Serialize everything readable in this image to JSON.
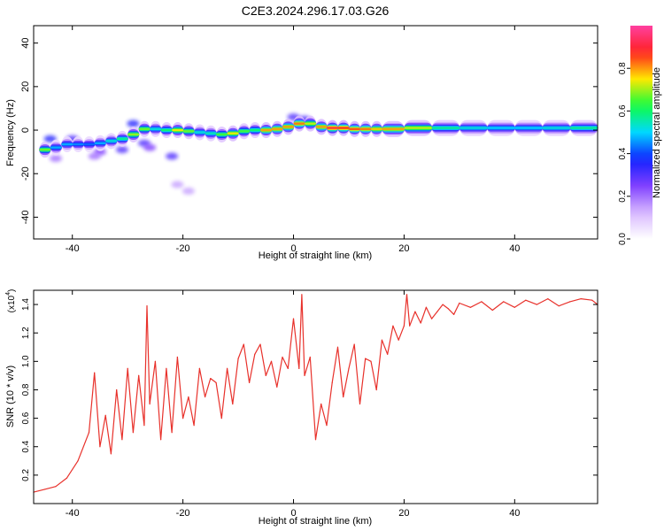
{
  "title": "C2E3.2024.296.17.03.G26",
  "colors": {
    "snr_line": "#e8312b",
    "axis": "#000000",
    "background": "#ffffff",
    "colormap": [
      "#ffffff",
      "#d8b8ff",
      "#8040ff",
      "#1020ff",
      "#00d8ff",
      "#10ff40",
      "#ffe800",
      "#ff2020",
      "#ff40a0"
    ]
  },
  "chart_data": [
    {
      "type": "heatmap",
      "title": "C2E3.2024.296.17.03.G26",
      "xlabel": "Height of straight line (km)",
      "ylabel": "Frequency (Hz)",
      "xlim": [
        -47,
        55
      ],
      "ylim": [
        -50,
        48
      ],
      "xticks": [
        "-40",
        "-20",
        "0",
        "20",
        "40"
      ],
      "yticks": [
        "40",
        "20",
        "0",
        "-20",
        "-40"
      ],
      "colorbar": {
        "label": "Normalized spectral amplitude",
        "range": [
          0.0,
          1.0
        ],
        "ticks": [
          "0.0",
          "0.2",
          "0.4",
          "0.6",
          "0.8"
        ]
      },
      "ridge": {
        "x": [
          -46,
          -44,
          -42,
          -40,
          -38,
          -36,
          -34,
          -32,
          -30,
          -28,
          -26,
          -24,
          -22,
          -20,
          -18,
          -16,
          -14,
          -12,
          -10,
          -8,
          -6,
          -4,
          -2,
          0,
          2,
          4,
          6,
          8,
          10,
          12,
          14,
          16,
          20,
          25,
          30,
          35,
          40,
          45,
          50,
          55
        ],
        "y": [
          -9,
          -9,
          -7,
          -6,
          -7,
          -6,
          -6,
          -4,
          -4,
          0,
          1,
          0,
          0,
          0,
          -1,
          -1,
          -2,
          -2,
          -1,
          0,
          0,
          0,
          1,
          2,
          4,
          2,
          1,
          1,
          1,
          0,
          1,
          0,
          1,
          1,
          1,
          1,
          1,
          1,
          1,
          1
        ],
        "amplitude": [
          0.85,
          0.5,
          0.45,
          0.5,
          0.4,
          0.45,
          0.5,
          0.55,
          0.6,
          0.8,
          0.55,
          0.5,
          0.7,
          0.8,
          0.55,
          0.5,
          0.6,
          0.7,
          0.8,
          0.5,
          0.7,
          0.9,
          0.7,
          0.9,
          0.75,
          0.7,
          0.9,
          0.9,
          0.85,
          0.85,
          0.8,
          0.75,
          0.85,
          0.6,
          0.55,
          0.5,
          0.5,
          0.5,
          0.55,
          0.6
        ]
      },
      "scatter_blobs": {
        "x": [
          -44,
          -40,
          -35,
          -31,
          -29,
          -27,
          -26,
          -22,
          -21,
          -19,
          -36,
          -43,
          -33,
          0,
          2
        ],
        "y": [
          -4,
          -4,
          -10,
          -9,
          3,
          -6,
          -8,
          -12,
          -25,
          -28,
          -12,
          -13,
          -5,
          6,
          5
        ],
        "amplitude": [
          0.35,
          0.3,
          0.25,
          0.3,
          0.35,
          0.3,
          0.25,
          0.3,
          0.15,
          0.15,
          0.2,
          0.2,
          0.3,
          0.3,
          0.3
        ]
      }
    },
    {
      "type": "line",
      "xlabel": "Height of straight line (km)",
      "ylabel": "SNR (10 * v/v)",
      "y_multiplier": "(x10",
      "y_multiplier_exp": "4",
      "y_multiplier_close": ")",
      "xlim": [
        -47,
        55
      ],
      "ylim": [
        0,
        1.5
      ],
      "xticks": [
        "-40",
        "-20",
        "0",
        "20",
        "40"
      ],
      "yticks": [
        "1.4",
        "1.2",
        "1.0",
        "0.8",
        "0.6",
        "0.4",
        "0.2"
      ],
      "series": [
        {
          "x": [
            -47,
            -45,
            -43,
            -41,
            -39,
            -37,
            -36,
            -35,
            -34,
            -33,
            -32,
            -31,
            -30,
            -29,
            -28,
            -27,
            -26.5,
            -26,
            -25,
            -24,
            -23,
            -22,
            -21,
            -20,
            -19,
            -18,
            -17,
            -16,
            -15,
            -14,
            -13,
            -12,
            -11,
            -10,
            -9,
            -8,
            -7,
            -6,
            -5,
            -4,
            -3,
            -2,
            -1,
            0,
            1,
            1.5,
            2,
            3,
            4,
            5,
            6,
            7,
            8,
            9,
            10,
            11,
            12,
            13,
            14,
            15,
            16,
            17,
            18,
            19,
            20,
            20.5,
            21,
            22,
            23,
            24,
            25,
            26,
            27,
            28,
            29,
            30,
            32,
            34,
            36,
            38,
            40,
            42,
            44,
            46,
            48,
            50,
            52,
            54,
            55
          ],
          "y": [
            0.08,
            0.1,
            0.12,
            0.18,
            0.3,
            0.5,
            0.92,
            0.4,
            0.62,
            0.35,
            0.8,
            0.45,
            0.95,
            0.5,
            0.9,
            0.55,
            1.39,
            0.7,
            1.0,
            0.45,
            0.95,
            0.5,
            1.03,
            0.6,
            0.75,
            0.55,
            0.95,
            0.75,
            0.88,
            0.85,
            0.6,
            0.95,
            0.7,
            1.02,
            1.12,
            0.85,
            1.05,
            1.12,
            0.9,
            1.0,
            0.82,
            1.03,
            0.95,
            1.3,
            0.95,
            1.47,
            0.9,
            1.03,
            0.45,
            0.7,
            0.55,
            0.85,
            1.1,
            0.75,
            0.95,
            1.12,
            0.7,
            1.02,
            1.0,
            0.8,
            1.15,
            1.05,
            1.25,
            1.15,
            1.25,
            1.47,
            1.25,
            1.35,
            1.27,
            1.38,
            1.3,
            1.35,
            1.4,
            1.37,
            1.33,
            1.41,
            1.38,
            1.42,
            1.36,
            1.42,
            1.38,
            1.43,
            1.4,
            1.44,
            1.39,
            1.42,
            1.44,
            1.43,
            1.4
          ]
        }
      ]
    }
  ]
}
